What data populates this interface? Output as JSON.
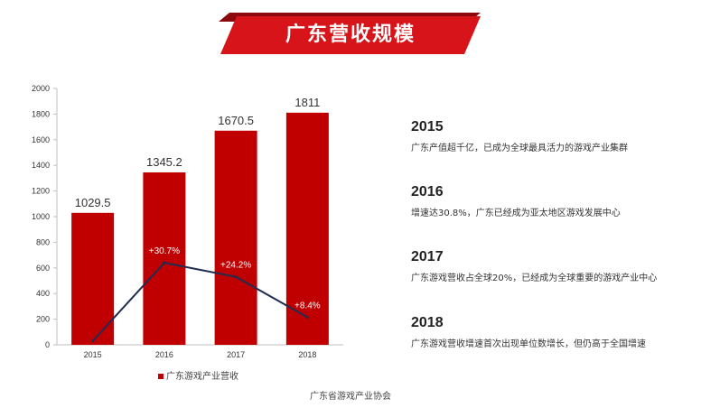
{
  "title": "广东营收规模",
  "colors": {
    "bar": "#c00000",
    "line": "#1f2d50",
    "banner": "#d7141a",
    "banner_dark": "#8c0a0e"
  },
  "chart_data": {
    "type": "bar",
    "categories": [
      "2015",
      "2016",
      "2017",
      "2018"
    ],
    "series": [
      {
        "name": "广东游戏产业营收",
        "values": [
          1029.5,
          1345.2,
          1670.5,
          1811
        ]
      }
    ],
    "bar_labels": [
      "1029.5",
      "1345.2",
      "1670.5",
      "1811"
    ],
    "growth_line": {
      "values": [
        30,
        640,
        530,
        215
      ],
      "labels": [
        "",
        "+30.7%",
        "+24.2%",
        "+8.4%"
      ]
    },
    "yticks": [
      "0",
      "200",
      "400",
      "600",
      "800",
      "1000",
      "1200",
      "1400",
      "1600",
      "1800",
      "2000"
    ],
    "ylim": [
      0,
      2000
    ],
    "legend": "广东游戏产业营收"
  },
  "timeline": [
    {
      "year": "2015",
      "desc": "广东产值超千亿，已成为全球最具活力的游戏产业集群"
    },
    {
      "year": "2016",
      "desc": "增速达30.8%，广东已经成为亚太地区游戏发展中心"
    },
    {
      "year": "2017",
      "desc": "广东游戏营收占全球20%，已经成为全球重要的游戏产业中心"
    },
    {
      "year": "2018",
      "desc": "广东游戏营收增速首次出现单位数增长，但仍高于全国增速"
    }
  ],
  "source": "广东省游戏产业协会"
}
